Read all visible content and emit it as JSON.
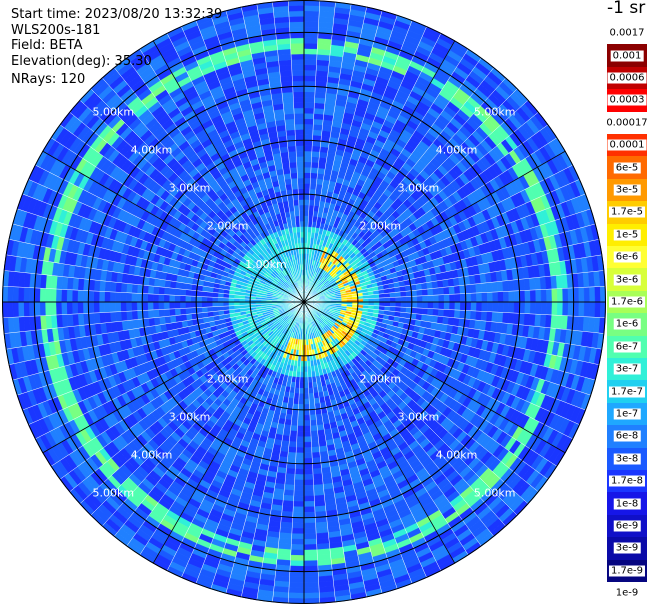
{
  "header": {
    "start_time": "Start time: 2023/08/20 13:32:39",
    "instrument": "WLS200s-181",
    "field": "Field: BETA",
    "elevation": "Elevation(deg): 35.30",
    "nrays": "NRays: 120"
  },
  "legend": {
    "unit": "-1 sr",
    "levels": [
      "0.0017",
      "0.001",
      "0.0006",
      "0.0003",
      "0.00017",
      "0.0001",
      "6e-5",
      "3e-5",
      "1.7e-5",
      "1e-5",
      "6e-6",
      "3e-6",
      "1.7e-6",
      "1e-6",
      "6e-7",
      "3e-7",
      "1.7e-7",
      "1e-7",
      "6e-8",
      "3e-8",
      "1.7e-8",
      "1e-8",
      "6e-9",
      "3e-9",
      "1.7e-9",
      "1e-9"
    ],
    "colors": [
      "#ffffff",
      "#8b0000",
      "#c00000",
      "#ff0000",
      "#ffffff",
      "#ff3000",
      "#ff6a00",
      "#ff9900",
      "#ffcc00",
      "#ffee00",
      "#ffff33",
      "#d8ff3a",
      "#a8ff58",
      "#78ff82",
      "#50ffb0",
      "#30f0d8",
      "#20d0f0",
      "#1fa8ff",
      "#2080ff",
      "#1a5aff",
      "#1a36ff",
      "#1616e8",
      "#1010c8",
      "#0a0aa8",
      "#060680",
      "#ffffff"
    ]
  },
  "chart_data": {
    "type": "heatmap",
    "projection": "polar PPI",
    "field": "BETA",
    "rays": 120,
    "range_rings_km": [
      1,
      2,
      3,
      4,
      5
    ],
    "ring_labels": [
      "1.00km",
      "2.00km",
      "3.00km",
      "4.00km",
      "5.00km"
    ],
    "max_range_km": 5.6,
    "color_scale": "log",
    "value_range": [
      1e-09,
      0.0017
    ],
    "features": [
      {
        "name": "near-field cloud arc",
        "range_km": [
          0.7,
          1.1
        ],
        "azimuth_deg": [
          20,
          200
        ],
        "beta": 3e-05
      },
      {
        "name": "near-field aerosol",
        "range_km": [
          0,
          1.4
        ],
        "beta": 2e-07
      },
      {
        "name": "outer layer ring",
        "range_km": 4.7,
        "beta": 1e-06
      }
    ]
  }
}
